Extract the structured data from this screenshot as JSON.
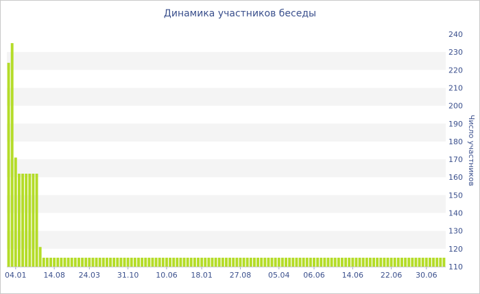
{
  "chart_data": {
    "type": "bar",
    "title": "Динамика участников беседы",
    "xlabel": "",
    "ylabel": "Число участников",
    "ylim": [
      110,
      240
    ],
    "yticks": [
      110,
      120,
      130,
      140,
      150,
      160,
      170,
      180,
      190,
      200,
      210,
      220,
      230,
      240
    ],
    "grid": "horizontal alternating bands",
    "bar_color": "#b4dc28",
    "band_color": "#f4f4f4",
    "text_color": "#3a4f8c",
    "xtick_labels": [
      {
        "label": "04.01",
        "bar": 2
      },
      {
        "label": "14.08",
        "bar": 13
      },
      {
        "label": "24.03",
        "bar": 23
      },
      {
        "label": "31.10",
        "bar": 34
      },
      {
        "label": "10.06",
        "bar": 45
      },
      {
        "label": "18.01",
        "bar": 55
      },
      {
        "label": "27.08",
        "bar": 66
      },
      {
        "label": "05.04",
        "bar": 77
      },
      {
        "label": "06.06",
        "bar": 87
      },
      {
        "label": "14.06",
        "bar": 98
      },
      {
        "label": "22.06",
        "bar": 109
      },
      {
        "label": "30.06",
        "bar": 119
      }
    ],
    "values": [
      224,
      235,
      171,
      162,
      162,
      162,
      162,
      162,
      162,
      121,
      115,
      115,
      115,
      115,
      115,
      115,
      115,
      115,
      115,
      115,
      115,
      115,
      115,
      115,
      115,
      115,
      115,
      115,
      115,
      115,
      115,
      115,
      115,
      115,
      115,
      115,
      115,
      115,
      115,
      115,
      115,
      115,
      115,
      115,
      115,
      115,
      115,
      115,
      115,
      115,
      115,
      115,
      115,
      115,
      115,
      115,
      115,
      115,
      115,
      115,
      115,
      115,
      115,
      115,
      115,
      115,
      115,
      115,
      115,
      115,
      115,
      115,
      115,
      115,
      115,
      115,
      115,
      115,
      115,
      115,
      115,
      115,
      115,
      115,
      115,
      115,
      115,
      115,
      115,
      115,
      115,
      115,
      115,
      115,
      115,
      115,
      115,
      115,
      115,
      115,
      115,
      115,
      115,
      115,
      115,
      115,
      115,
      115,
      115,
      115,
      115,
      115,
      115,
      115,
      115,
      115,
      115,
      115,
      115,
      115,
      115,
      115,
      115,
      115,
      115
    ]
  }
}
